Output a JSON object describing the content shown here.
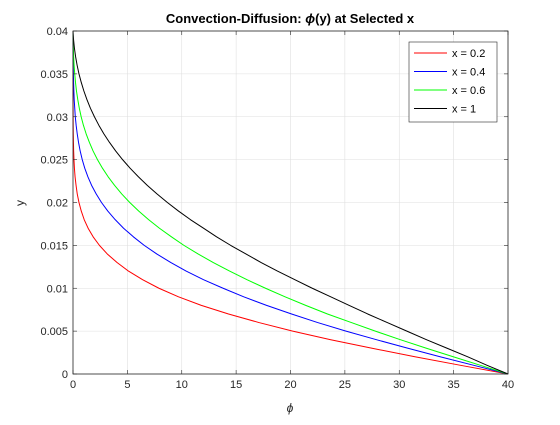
{
  "chart_data": {
    "type": "line",
    "title_parts": [
      "Convection-Diffusion: ",
      "ϕ",
      "(y) at Selected x"
    ],
    "xlabel": "ϕ",
    "ylabel": "y",
    "xlim": [
      0,
      40
    ],
    "ylim": [
      0,
      0.04
    ],
    "xticks": [
      "0",
      "5",
      "10",
      "15",
      "20",
      "25",
      "30",
      "35",
      "40"
    ],
    "yticks": [
      "0",
      "0.005",
      "0.01",
      "0.015",
      "0.02",
      "0.025",
      "0.03",
      "0.035",
      "0.04"
    ],
    "grid": true,
    "legend_position": "top-right",
    "series": [
      {
        "name": "x = 0.2",
        "color": "#ff0000",
        "y": [
          0,
          0.001,
          0.002,
          0.003,
          0.004,
          0.005,
          0.006,
          0.007,
          0.008,
          0.009,
          0.01,
          0.011,
          0.012,
          0.013,
          0.014,
          0.015,
          0.016,
          0.017,
          0.018,
          0.019,
          0.02,
          0.021,
          0.022,
          0.023,
          0.024,
          0.025,
          0.026,
          0.027,
          0.028,
          0.029,
          0.03,
          0.031,
          0.032,
          0.033,
          0.034,
          0.035,
          0.036,
          0.037,
          0.038,
          0.039,
          0.04
        ],
        "x": [
          40,
          35.7,
          31.5,
          27.5,
          23.7,
          20.2,
          17.1,
          14.3,
          11.8,
          9.7,
          7.9,
          6.4,
          5.1,
          4.05,
          3.15,
          2.43,
          1.85,
          1.39,
          1.03,
          0.76,
          0.55,
          0.39,
          0.28,
          0.19,
          0.13,
          0.09,
          0.06,
          0.04,
          0.025,
          0.016,
          0.01,
          0.006,
          0.004,
          0.0025,
          0.0015,
          0.001,
          0.0006,
          0.0004,
          0.0002,
          0.0001,
          0
        ]
      },
      {
        "name": "x = 0.4",
        "color": "#0000ff",
        "y": [
          0,
          0.001,
          0.002,
          0.003,
          0.004,
          0.005,
          0.006,
          0.007,
          0.008,
          0.009,
          0.01,
          0.011,
          0.012,
          0.013,
          0.014,
          0.015,
          0.016,
          0.017,
          0.018,
          0.019,
          0.02,
          0.021,
          0.022,
          0.023,
          0.024,
          0.025,
          0.026,
          0.027,
          0.028,
          0.029,
          0.03,
          0.031,
          0.032,
          0.033,
          0.034,
          0.035,
          0.036,
          0.037,
          0.038,
          0.039,
          0.04
        ],
        "x": [
          40,
          36.9,
          33.8,
          30.8,
          27.9,
          25.1,
          22.5,
          20.1,
          17.8,
          15.7,
          13.8,
          12.0,
          10.4,
          9.0,
          7.7,
          6.55,
          5.55,
          4.65,
          3.88,
          3.2,
          2.62,
          2.13,
          1.71,
          1.37,
          1.08,
          0.85,
          0.66,
          0.51,
          0.39,
          0.29,
          0.21,
          0.16,
          0.11,
          0.08,
          0.055,
          0.037,
          0.024,
          0.015,
          0.009,
          0.004,
          0
        ]
      },
      {
        "name": "x = 0.6",
        "color": "#00ff00",
        "y": [
          0,
          0.001,
          0.002,
          0.003,
          0.004,
          0.005,
          0.006,
          0.007,
          0.008,
          0.009,
          0.01,
          0.011,
          0.012,
          0.013,
          0.014,
          0.015,
          0.016,
          0.017,
          0.018,
          0.019,
          0.02,
          0.021,
          0.022,
          0.023,
          0.024,
          0.025,
          0.026,
          0.027,
          0.028,
          0.029,
          0.03,
          0.031,
          0.032,
          0.033,
          0.034,
          0.035,
          0.036,
          0.037,
          0.038,
          0.039,
          0.04
        ],
        "x": [
          40,
          37.5,
          35.0,
          32.5,
          30.1,
          27.8,
          25.6,
          23.4,
          21.4,
          19.5,
          17.7,
          16.0,
          14.4,
          12.9,
          11.5,
          10.2,
          9.05,
          7.95,
          6.95,
          6.05,
          5.22,
          4.48,
          3.82,
          3.23,
          2.71,
          2.25,
          1.85,
          1.51,
          1.21,
          0.96,
          0.75,
          0.58,
          0.44,
          0.32,
          0.23,
          0.16,
          0.1,
          0.06,
          0.033,
          0.013,
          0
        ]
      },
      {
        "name": "x = 1",
        "color": "#000000",
        "y": [
          0,
          0.001,
          0.002,
          0.003,
          0.004,
          0.005,
          0.006,
          0.007,
          0.008,
          0.009,
          0.01,
          0.011,
          0.012,
          0.013,
          0.014,
          0.015,
          0.016,
          0.017,
          0.018,
          0.019,
          0.02,
          0.021,
          0.022,
          0.023,
          0.024,
          0.025,
          0.026,
          0.027,
          0.028,
          0.029,
          0.03,
          0.031,
          0.032,
          0.033,
          0.034,
          0.035,
          0.036,
          0.037,
          0.038,
          0.039,
          0.04
        ],
        "x": [
          40,
          38.1,
          36.3,
          34.4,
          32.5,
          30.7,
          28.9,
          27.1,
          25.4,
          23.7,
          22.0,
          20.4,
          18.8,
          17.3,
          15.9,
          14.5,
          13.2,
          12.0,
          10.8,
          9.7,
          8.68,
          7.72,
          6.83,
          6.01,
          5.25,
          4.56,
          3.93,
          3.36,
          2.84,
          2.38,
          1.97,
          1.6,
          1.28,
          1.0,
          0.76,
          0.55,
          0.38,
          0.24,
          0.13,
          0.05,
          0
        ]
      }
    ]
  }
}
